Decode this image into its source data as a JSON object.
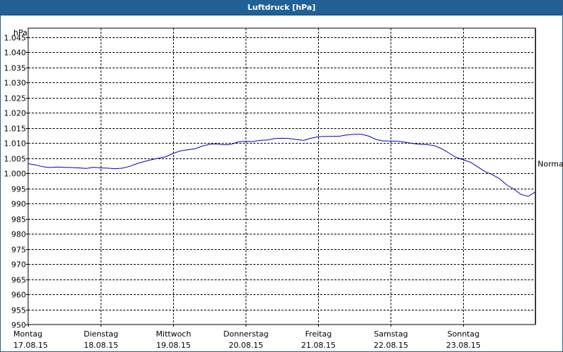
{
  "chart_data": {
    "type": "line",
    "title": "Luftdruck [hPa]",
    "ylabel": "hPa",
    "ylim": [
      950,
      1048
    ],
    "yticks": [
      "1.045",
      "1.040",
      "1.035",
      "1.030",
      "1.025",
      "1.020",
      "1.015",
      "1.010",
      "1.005",
      "1.000",
      "995",
      "990",
      "985",
      "980",
      "975",
      "970",
      "965",
      "960",
      "955",
      "950"
    ],
    "ytick_values": [
      1045,
      1040,
      1035,
      1030,
      1025,
      1020,
      1015,
      1010,
      1005,
      1000,
      995,
      990,
      985,
      980,
      975,
      970,
      965,
      960,
      955,
      950
    ],
    "xlim": [
      0,
      7
    ],
    "xticks": [
      {
        "day": "Montag",
        "date": "17.08.15"
      },
      {
        "day": "Dienstag",
        "date": "18.08.15"
      },
      {
        "day": "Mittwoch",
        "date": "19.08.15"
      },
      {
        "day": "Donnerstag",
        "date": "20.08.15"
      },
      {
        "day": "Freitag",
        "date": "21.08.15"
      },
      {
        "day": "Samstag",
        "date": "22.08.15"
      },
      {
        "day": "Sonntag",
        "date": "23.08.15"
      }
    ],
    "reference_label": "Normal",
    "reference_value": 1003.2,
    "grid": true,
    "series": [
      {
        "color": "#0000c8",
        "x": [
          0,
          0.1,
          0.2,
          0.3,
          0.4,
          0.5,
          0.6,
          0.7,
          0.8,
          0.9,
          1.0,
          1.1,
          1.2,
          1.3,
          1.4,
          1.5,
          1.6,
          1.7,
          1.8,
          1.9,
          2.0,
          2.1,
          2.2,
          2.3,
          2.4,
          2.5,
          2.6,
          2.7,
          2.8,
          2.9,
          3.0,
          3.1,
          3.2,
          3.3,
          3.4,
          3.5,
          3.6,
          3.7,
          3.8,
          3.9,
          4.0,
          4.1,
          4.2,
          4.3,
          4.4,
          4.5,
          4.6,
          4.7,
          4.8,
          4.9,
          5.0,
          5.1,
          5.2,
          5.3,
          5.4,
          5.5,
          5.6,
          5.7,
          5.8,
          5.9,
          6.0,
          6.1,
          6.2,
          6.3,
          6.4,
          6.5,
          6.6,
          6.7,
          6.8,
          6.9,
          7.0
        ],
        "y": [
          1003.2,
          1002.8,
          1002.2,
          1001.9,
          1002.1,
          1002.0,
          1001.9,
          1001.8,
          1001.6,
          1002.0,
          1001.8,
          1001.7,
          1001.5,
          1001.7,
          1002.3,
          1003.2,
          1003.9,
          1004.5,
          1005.0,
          1005.5,
          1006.6,
          1007.4,
          1007.8,
          1008.1,
          1009.0,
          1009.6,
          1009.7,
          1009.4,
          1009.6,
          1010.4,
          1010.6,
          1010.5,
          1010.9,
          1011.0,
          1011.5,
          1011.6,
          1011.5,
          1011.2,
          1010.9,
          1011.6,
          1012.1,
          1012.2,
          1012.2,
          1012.3,
          1012.7,
          1012.9,
          1012.9,
          1012.3,
          1011.2,
          1010.7,
          1010.7,
          1010.6,
          1010.3,
          1009.9,
          1009.6,
          1009.5,
          1009.2,
          1008.2,
          1006.8,
          1005.3,
          1004.5,
          1003.7,
          1002.2,
          1000.6,
          999.6,
          998.3,
          996.2,
          994.8,
          993.0,
          992.4,
          993.9
        ]
      }
    ]
  }
}
